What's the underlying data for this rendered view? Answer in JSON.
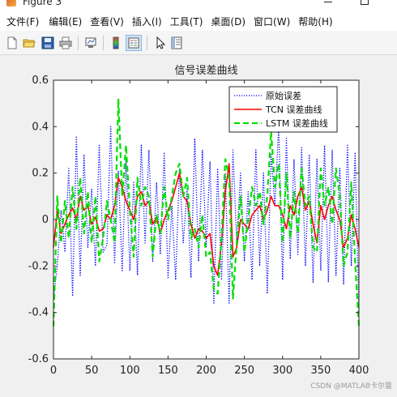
{
  "window": {
    "title": "Figure 3"
  },
  "menu": {
    "items": [
      "文件(F)",
      "编辑(E)",
      "查看(V)",
      "插入(I)",
      "工具(T)",
      "桌面(D)",
      "窗口(W)",
      "帮助(H)"
    ]
  },
  "toolbar": {
    "buttons": [
      "new-figure-icon",
      "open-file-icon",
      "save-icon",
      "print-icon",
      "link-plot-icon",
      "insert-colorbar-icon",
      "insert-legend-icon",
      "pointer-icon",
      "property-inspector-icon"
    ]
  },
  "chart_data": {
    "type": "line",
    "title": "信号误差曲线",
    "xlabel": "",
    "ylabel": "",
    "xlim": [
      0,
      400
    ],
    "ylim": [
      -0.6,
      0.6
    ],
    "x_ticks": [
      "0",
      "50",
      "100",
      "150",
      "200",
      "250",
      "300",
      "350",
      "400"
    ],
    "y_ticks": [
      "0.6",
      "0.4",
      "0.2",
      "0",
      "-0.2",
      "-0.4",
      "-0.6"
    ],
    "legend_position": "top-right",
    "grid": false,
    "series": [
      {
        "name": "原始误差",
        "color": "#0000ff",
        "style": "dotted",
        "x_step": 5,
        "values": [
          -0.34,
          -0.2,
          0.04,
          -0.14,
          0.22,
          -0.33,
          0.36,
          -0.24,
          0.28,
          -0.12,
          0.13,
          -0.2,
          0.32,
          -0.14,
          -0.11,
          0.4,
          -0.19,
          0.21,
          -0.22,
          0.26,
          -0.22,
          0.16,
          -0.24,
          0.32,
          -0.1,
          0.3,
          -0.18,
          0.16,
          -0.15,
          0.29,
          -0.25,
          0.06,
          -0.26,
          0.22,
          -0.1,
          0.13,
          -0.25,
          0.35,
          -0.18,
          0.3,
          -0.12,
          0.25,
          -0.36,
          0.22,
          -0.26,
          0.2,
          -0.36,
          0.3,
          -0.1,
          0.2,
          -0.18,
          0.12,
          -0.26,
          0.3,
          -0.2,
          0.2,
          -0.32,
          0.28,
          0.06,
          0.4,
          -0.26,
          0.35,
          -0.17,
          0.26,
          -0.15,
          0.31,
          -0.2,
          0.28,
          -0.27,
          0.26,
          -0.22,
          0.32,
          -0.27,
          0.3,
          -0.24,
          0.22,
          -0.28,
          0.32,
          -0.2,
          0.29,
          -0.4
        ]
      },
      {
        "name": "TCN 误差曲线",
        "color": "#ff0000",
        "style": "solid",
        "x_step": 5,
        "values": [
          -0.12,
          0.04,
          -0.06,
          -0.02,
          0.02,
          0.05,
          0.0,
          0.1,
          0.04,
          0.06,
          -0.02,
          0.01,
          -0.05,
          -0.04,
          0.02,
          0.0,
          0.06,
          0.18,
          0.14,
          0.08,
          0.04,
          0.0,
          0.1,
          0.12,
          0.06,
          0.08,
          -0.02,
          0.01,
          -0.06,
          0.0,
          0.04,
          0.08,
          0.14,
          0.2,
          0.1,
          0.08,
          -0.02,
          -0.08,
          -0.04,
          -0.05,
          -0.08,
          -0.06,
          -0.2,
          -0.24,
          -0.1,
          0.12,
          0.24,
          -0.16,
          -0.12,
          0.0,
          -0.02,
          -0.04,
          0.02,
          0.04,
          0.06,
          0.0,
          0.04,
          0.1,
          0.06,
          0.06,
          0.02,
          -0.04,
          0.06,
          0.02,
          0.1,
          0.14,
          0.04,
          0.08,
          -0.02,
          -0.1,
          0.06,
          0.0,
          0.06,
          0.1,
          0.04,
          0.0,
          -0.12,
          -0.08,
          0.02,
          -0.04,
          -0.12
        ]
      },
      {
        "name": "LSTM 误差曲线",
        "color": "#00e000",
        "style": "dashed",
        "x_step": 5,
        "values": [
          -0.46,
          0.1,
          -0.1,
          0.08,
          -0.08,
          0.14,
          -0.04,
          0.18,
          -0.06,
          0.12,
          -0.1,
          0.1,
          -0.18,
          -0.08,
          0.08,
          0.0,
          -0.1,
          0.52,
          0.1,
          0.32,
          0.04,
          -0.16,
          0.18,
          0.06,
          0.14,
          0.1,
          -0.16,
          0.02,
          -0.06,
          0.14,
          0.0,
          0.1,
          0.2,
          0.24,
          0.1,
          0.18,
          -0.08,
          -0.04,
          -0.12,
          0.02,
          -0.16,
          -0.14,
          -0.3,
          -0.32,
          -0.08,
          0.26,
          0.18,
          -0.34,
          -0.1,
          0.1,
          -0.14,
          0.0,
          0.14,
          0.06,
          0.12,
          -0.02,
          0.1,
          0.38,
          0.14,
          0.24,
          -0.1,
          0.2,
          -0.08,
          0.12,
          -0.06,
          0.22,
          0.06,
          0.1,
          -0.12,
          -0.14,
          0.22,
          0.06,
          0.14,
          -0.02,
          0.22,
          0.1,
          -0.2,
          -0.14,
          0.16,
          -0.18,
          -0.46
        ]
      }
    ]
  },
  "footer": {
    "watermark": "CSDN @MATLAB卡尔曼"
  }
}
